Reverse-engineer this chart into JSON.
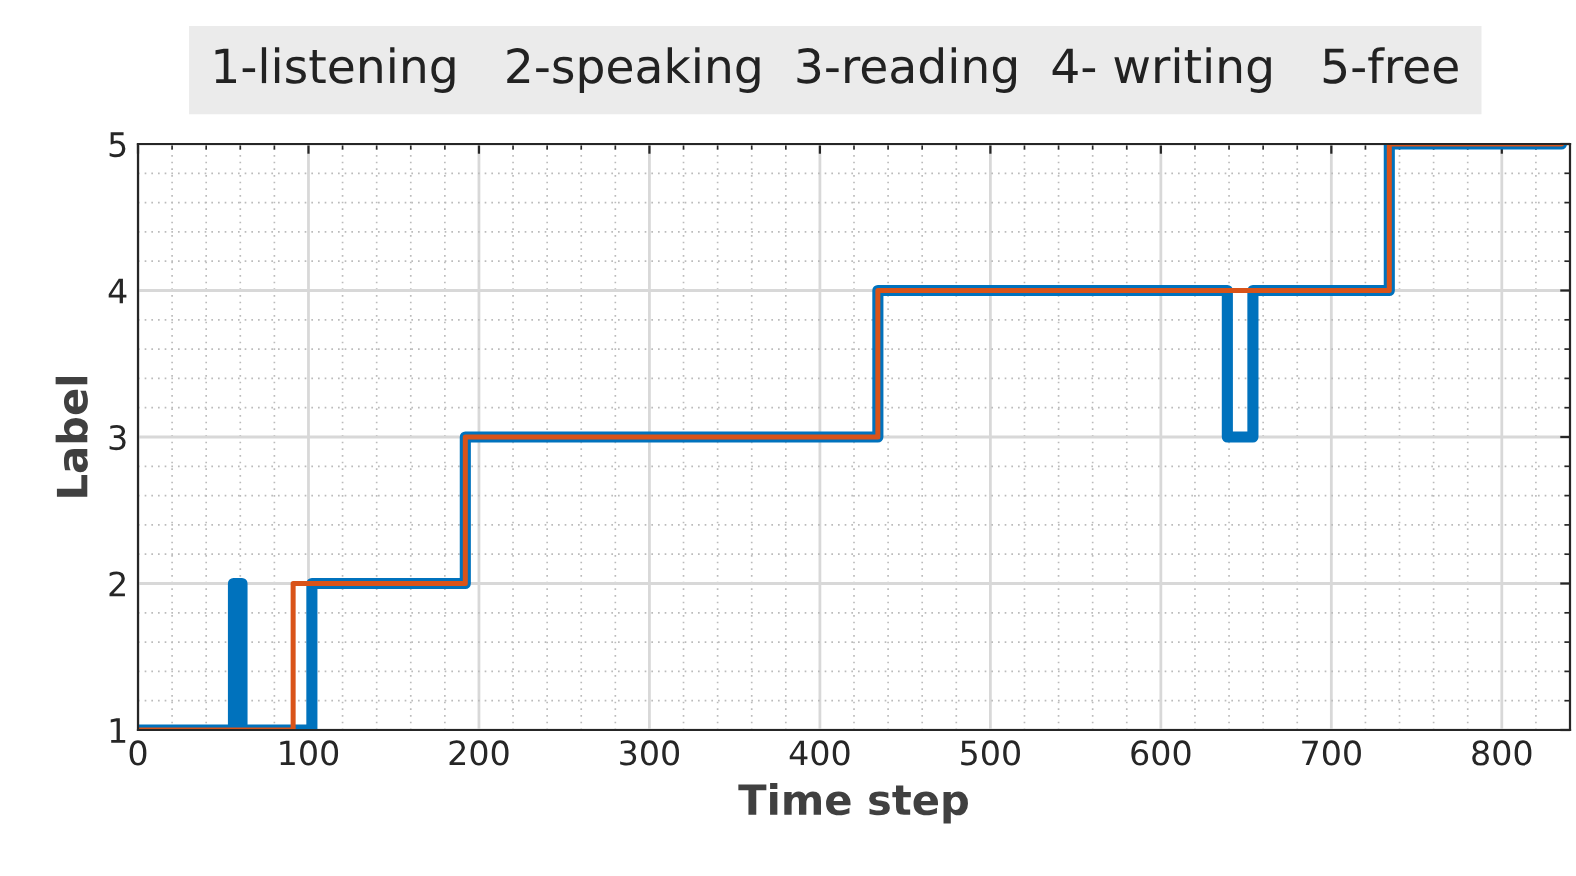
{
  "chart_data": {
    "type": "step",
    "title": "1-listening   2-speaking  3-reading  4- writing   5-free",
    "xlabel": "Time step",
    "ylabel": "Label",
    "series": [
      {
        "color": "#0072bd",
        "x": [
          0,
          56,
          61,
          102,
          192,
          434,
          639,
          654,
          734,
          835
        ],
        "values": [
          1,
          2,
          1,
          2,
          3,
          4,
          3,
          4,
          5,
          5
        ]
      },
      {
        "color": "#d95319",
        "x": [
          0,
          91,
          192,
          434,
          734,
          835
        ],
        "values": [
          1,
          2,
          3,
          4,
          5,
          5
        ]
      }
    ],
    "xlim": [
      0,
      840
    ],
    "ylim": [
      1,
      5
    ],
    "xticks": [
      0,
      100,
      200,
      300,
      400,
      500,
      600,
      700,
      800
    ],
    "yticks": [
      1,
      2,
      3,
      4,
      5
    ],
    "grid": true,
    "line_style": "solid"
  }
}
